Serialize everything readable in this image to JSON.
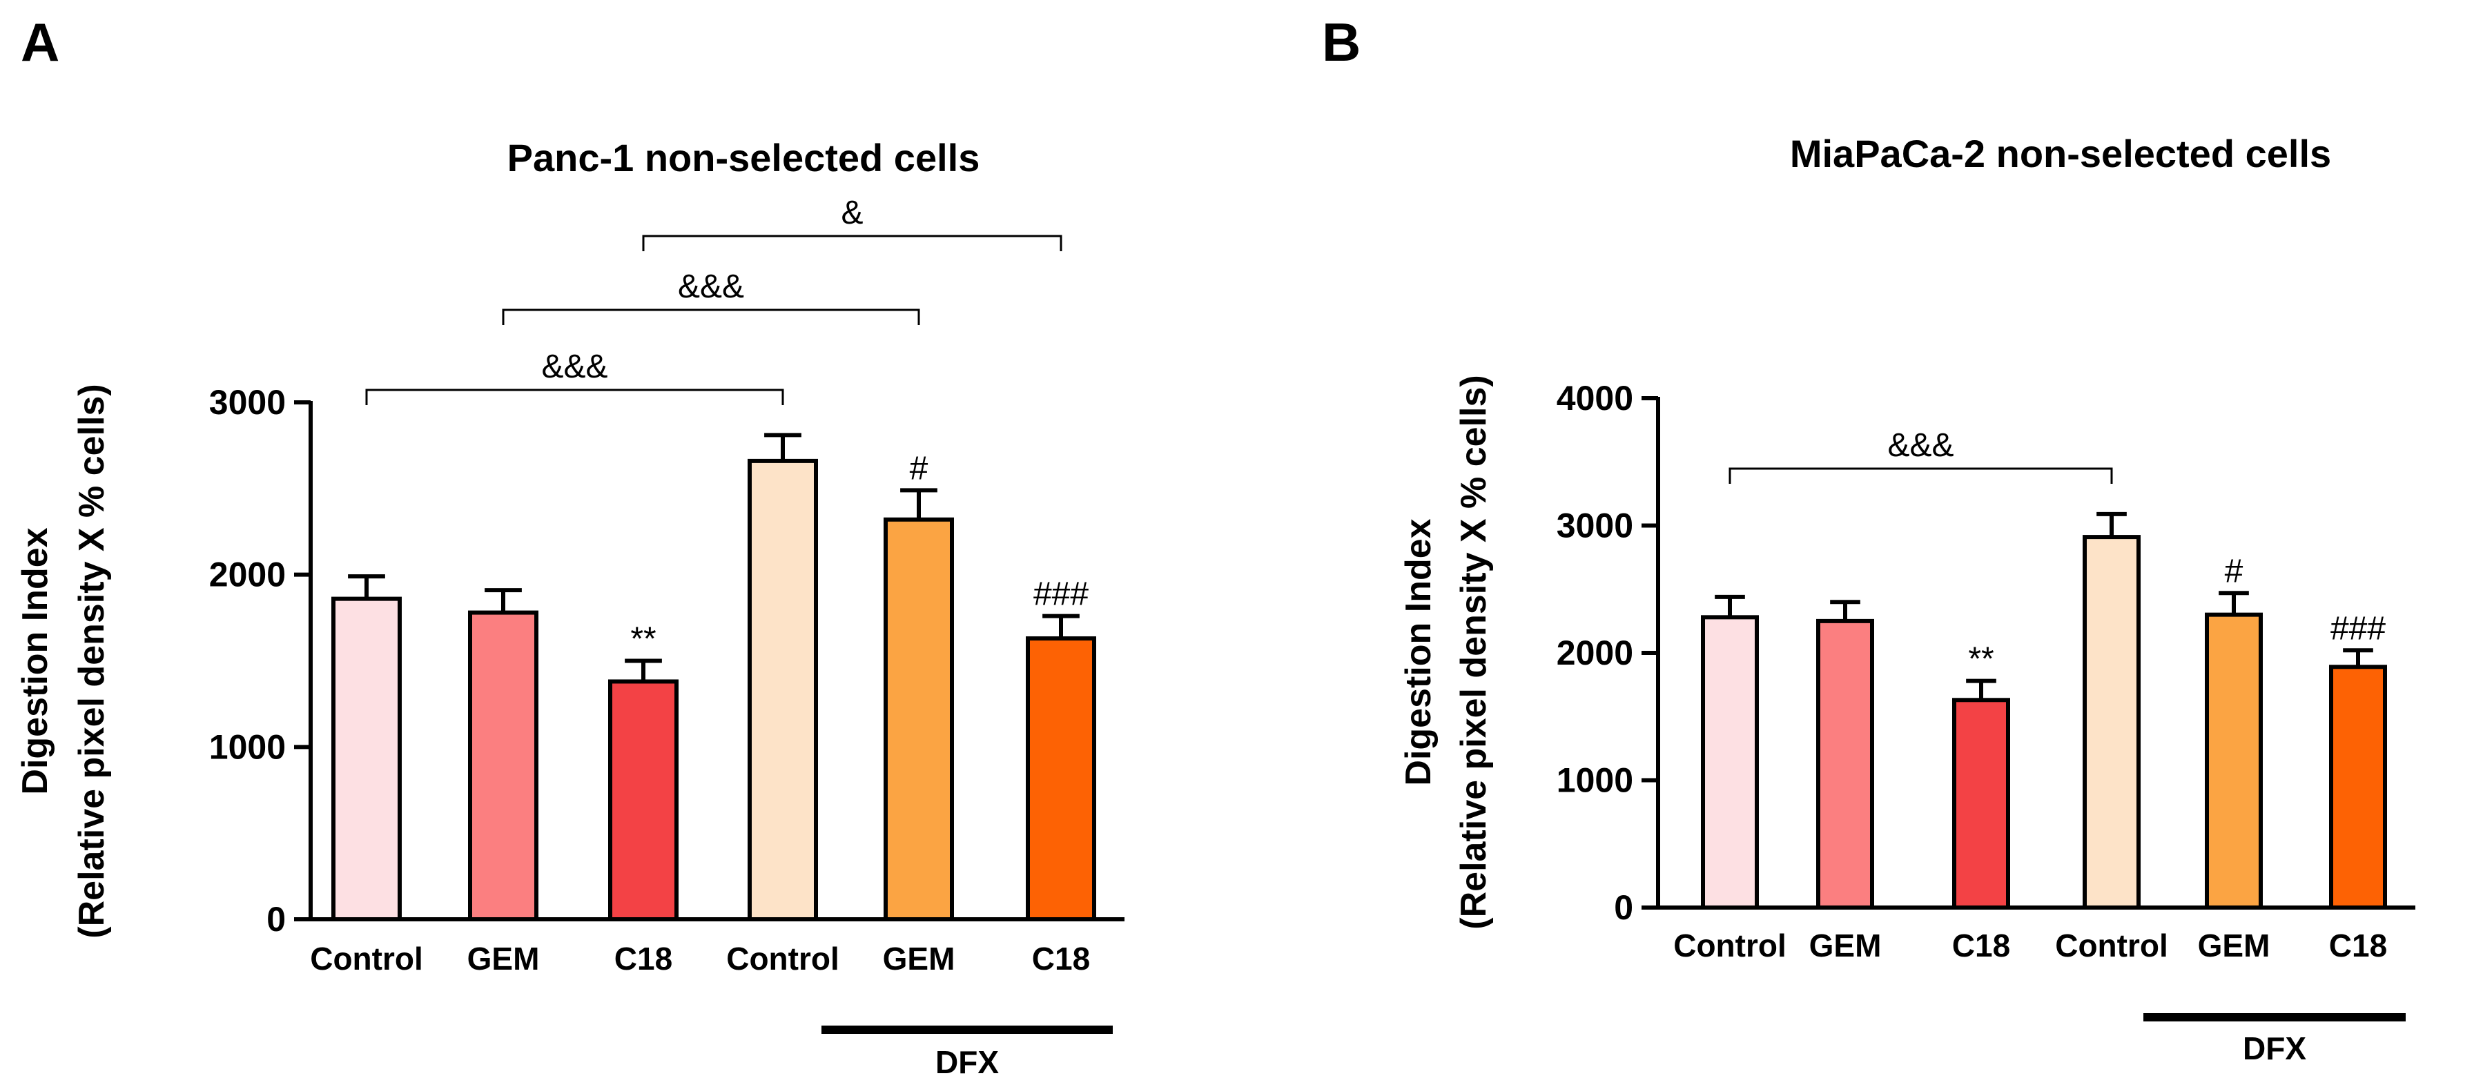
{
  "chart_data": [
    {
      "panel": "A",
      "type": "bar",
      "title": "Panc-1 non-selected cells",
      "ylabel_lines": [
        "Digestion Index",
        "(Relative pixel density X % cells)"
      ],
      "xlabel": "",
      "ylim": [
        0,
        3000
      ],
      "yticks": [
        0,
        1000,
        2000,
        3000
      ],
      "categories": [
        "Control",
        "GEM",
        "C18",
        "Control",
        "GEM",
        "C18"
      ],
      "values": [
        1860,
        1780,
        1380,
        2660,
        2320,
        1630
      ],
      "errors": [
        130,
        130,
        120,
        150,
        170,
        130
      ],
      "colors": [
        "#fde0e3",
        "#fb7f80",
        "#f34245",
        "#fde3c8",
        "#fba443",
        "#fd6204"
      ],
      "bar_labels": [
        "",
        "",
        "**",
        "",
        "#",
        "###"
      ],
      "group_label": "DFX",
      "group_span": [
        3,
        5
      ],
      "brackets": [
        {
          "from": 0,
          "to": 3,
          "label": "&&&"
        },
        {
          "from": 1,
          "to": 4,
          "label": "&&&"
        },
        {
          "from": 2,
          "to": 5,
          "label": "&"
        }
      ]
    },
    {
      "panel": "B",
      "type": "bar",
      "title": "MiaPaCa-2 non-selected cells",
      "ylabel_lines": [
        "Digestion Index",
        "(Relative pixel density X % cells)"
      ],
      "xlabel": "",
      "ylim": [
        0,
        4000
      ],
      "yticks": [
        0,
        1000,
        2000,
        3000,
        4000
      ],
      "categories": [
        "Control",
        "GEM",
        "C18",
        "Control",
        "GEM",
        "C18"
      ],
      "values": [
        2280,
        2250,
        1630,
        2910,
        2300,
        1890
      ],
      "errors": [
        160,
        150,
        150,
        180,
        170,
        130
      ],
      "colors": [
        "#fde0e3",
        "#fb7f80",
        "#f34245",
        "#fde3c8",
        "#fba443",
        "#fd6204"
      ],
      "bar_labels": [
        "",
        "",
        "**",
        "",
        "#",
        "###"
      ],
      "group_label": "DFX",
      "group_span": [
        3,
        5
      ],
      "brackets": [
        {
          "from": 0,
          "to": 3,
          "label": "&&&"
        }
      ]
    }
  ]
}
